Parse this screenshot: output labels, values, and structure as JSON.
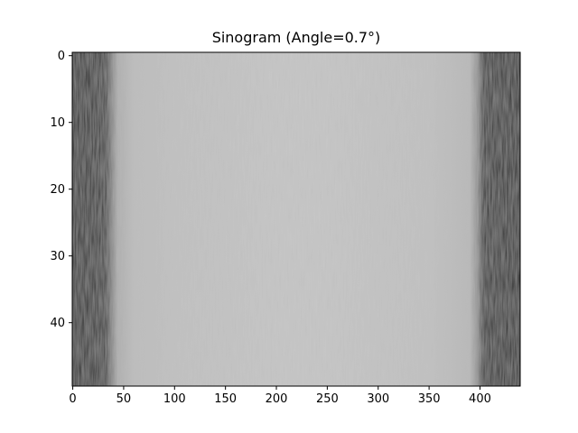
{
  "chart_data": {
    "type": "heatmap",
    "title": "Sinogram (Angle=0.7°)",
    "xlabel": "",
    "ylabel": "",
    "colormap": "gray",
    "x_range": [
      -0.5,
      439.5
    ],
    "y_range": [
      -0.5,
      49.5
    ],
    "y_inverted": true,
    "x_ticks": [
      0,
      50,
      100,
      150,
      200,
      250,
      300,
      350,
      400
    ],
    "x_tick_labels": [
      "0",
      "50",
      "100",
      "150",
      "200",
      "250",
      "300",
      "350",
      "400"
    ],
    "y_ticks": [
      0,
      10,
      20,
      30,
      40
    ],
    "y_tick_labels": [
      "0",
      "10",
      "20",
      "30",
      "40"
    ],
    "grid": false,
    "dark_band_left": [
      0,
      36
    ],
    "bright_region": [
      40,
      400
    ],
    "dark_band_right": [
      404,
      440
    ],
    "intensity_profile": {
      "x": [
        0,
        20,
        32,
        38,
        44,
        60,
        100,
        150,
        200,
        250,
        300,
        350,
        390,
        398,
        404,
        420,
        439
      ],
      "value": [
        0.16,
        0.17,
        0.24,
        0.5,
        0.68,
        0.74,
        0.76,
        0.77,
        0.78,
        0.78,
        0.77,
        0.76,
        0.72,
        0.55,
        0.2,
        0.16,
        0.15
      ]
    }
  }
}
